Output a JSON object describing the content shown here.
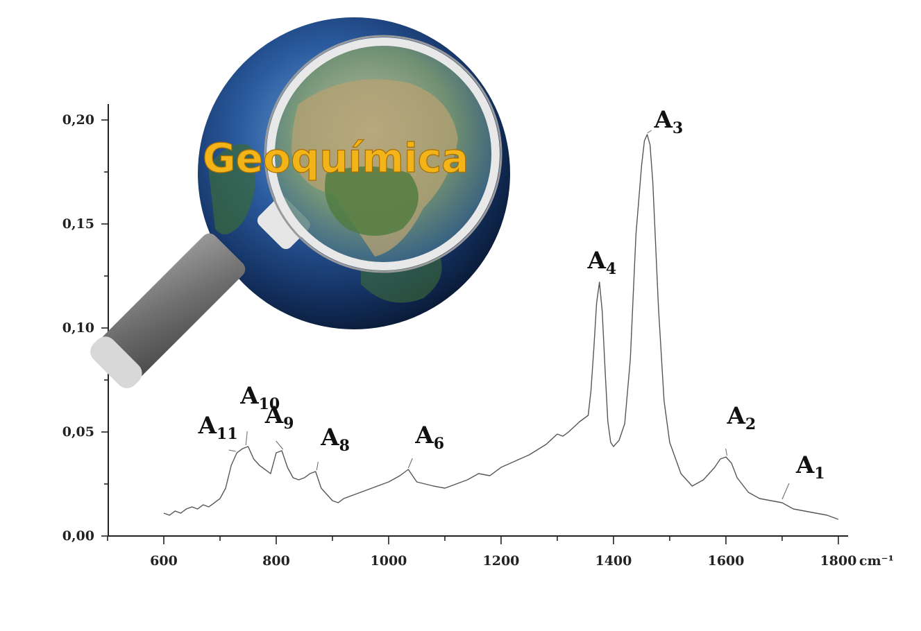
{
  "logo": {
    "text": "Geoquímica"
  },
  "chart_data": {
    "type": "line",
    "title": "",
    "xlabel": "",
    "ylabel": "",
    "x_unit": "cm⁻¹",
    "xlim": [
      500,
      1810
    ],
    "ylim": [
      0,
      0.205
    ],
    "x_ticks": [
      600,
      800,
      1000,
      1200,
      1400,
      1600,
      1800
    ],
    "x_tick_labels": [
      "600",
      "800",
      "1000",
      "1200",
      "1400",
      "1600",
      "1800"
    ],
    "y_ticks": [
      0,
      0.05,
      0.1,
      0.15,
      0.2
    ],
    "y_tick_labels": [
      "0,00",
      "0,05",
      "0,10",
      "0,15",
      "0,20"
    ],
    "grid": false,
    "series": [
      {
        "x": [
          600,
          610,
          620,
          630,
          640,
          650,
          660,
          670,
          680,
          690,
          700,
          710,
          720,
          730,
          740,
          750,
          760,
          770,
          780,
          790,
          800,
          810,
          820,
          830,
          840,
          850,
          860,
          870,
          880,
          890,
          900,
          910,
          920,
          940,
          960,
          980,
          1000,
          1020,
          1035,
          1050,
          1080,
          1100,
          1120,
          1140,
          1160,
          1180,
          1200,
          1250,
          1280,
          1300,
          1310,
          1320,
          1340,
          1355,
          1360,
          1365,
          1370,
          1375,
          1380,
          1385,
          1390,
          1395,
          1400,
          1410,
          1420,
          1430,
          1440,
          1450,
          1455,
          1460,
          1465,
          1470,
          1480,
          1490,
          1500,
          1520,
          1540,
          1560,
          1580,
          1590,
          1600,
          1610,
          1620,
          1640,
          1660,
          1680,
          1700,
          1720,
          1740,
          1760,
          1780,
          1800
        ],
        "y": [
          0.011,
          0.01,
          0.012,
          0.011,
          0.013,
          0.014,
          0.013,
          0.015,
          0.014,
          0.016,
          0.018,
          0.023,
          0.034,
          0.04,
          0.042,
          0.043,
          0.037,
          0.034,
          0.032,
          0.03,
          0.04,
          0.041,
          0.033,
          0.028,
          0.027,
          0.028,
          0.03,
          0.031,
          0.023,
          0.02,
          0.017,
          0.016,
          0.018,
          0.02,
          0.022,
          0.024,
          0.026,
          0.029,
          0.032,
          0.026,
          0.024,
          0.023,
          0.025,
          0.027,
          0.03,
          0.029,
          0.033,
          0.039,
          0.044,
          0.049,
          0.048,
          0.05,
          0.055,
          0.058,
          0.07,
          0.09,
          0.112,
          0.122,
          0.108,
          0.08,
          0.055,
          0.045,
          0.043,
          0.046,
          0.054,
          0.085,
          0.145,
          0.178,
          0.19,
          0.193,
          0.188,
          0.17,
          0.11,
          0.065,
          0.045,
          0.03,
          0.024,
          0.027,
          0.033,
          0.037,
          0.038,
          0.035,
          0.028,
          0.021,
          0.018,
          0.017,
          0.016,
          0.013,
          0.012,
          0.011,
          0.01,
          0.008
        ]
      }
    ],
    "annotations": [
      {
        "id": "A1",
        "label": "A",
        "sub": "1",
        "x": 1700,
        "y": 0.017
      },
      {
        "id": "A2",
        "label": "A",
        "sub": "2",
        "x": 1602,
        "y": 0.038
      },
      {
        "id": "A3",
        "label": "A",
        "sub": "3",
        "x": 1460,
        "y": 0.193
      },
      {
        "id": "A4",
        "label": "A",
        "sub": "4",
        "x": 1376,
        "y": 0.122
      },
      {
        "id": "A6",
        "label": "A",
        "sub": "6",
        "x": 1035,
        "y": 0.032
      },
      {
        "id": "A8",
        "label": "A",
        "sub": "8",
        "x": 872,
        "y": 0.031
      },
      {
        "id": "A9",
        "label": "A",
        "sub": "9",
        "x": 812,
        "y": 0.041
      },
      {
        "id": "A10",
        "label": "A",
        "sub": "10",
        "x": 746,
        "y": 0.043
      },
      {
        "id": "A11",
        "label": "A",
        "sub": "11",
        "x": 728,
        "y": 0.04
      }
    ]
  }
}
